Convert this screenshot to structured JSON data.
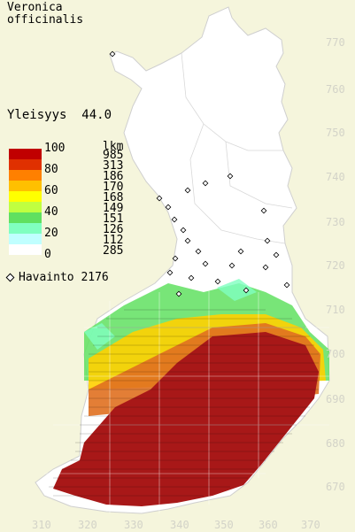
{
  "species": {
    "line1": "Veronica",
    "line2": "officinalis"
  },
  "summary": {
    "yleisyys_label": "Yleisyys",
    "yleisyys_value": "44.0",
    "havainto_label": "Havainto",
    "havainto_value": "2176"
  },
  "legend": {
    "lkm_header": "lkm",
    "percent_labels": [
      "100",
      "80",
      "60",
      "40",
      "20",
      "0"
    ],
    "swatch_colors": [
      "#c00000",
      "#e03000",
      "#ff8000",
      "#ffc000",
      "#ffff00",
      "#c0ff40",
      "#60e060",
      "#80ffc0",
      "#c0ffff",
      "#ffffff"
    ],
    "counts": [
      "985",
      "313",
      "186",
      "170",
      "168",
      "149",
      "151",
      "126",
      "112",
      "285"
    ]
  },
  "axes": {
    "y_ticks": [
      "770",
      "760",
      "750",
      "740",
      "730",
      "720",
      "710",
      "700",
      "690",
      "680",
      "670"
    ],
    "x_ticks": [
      "310",
      "320",
      "330",
      "340",
      "350",
      "360",
      "370"
    ]
  },
  "colors": {
    "background": "#f5f5dc",
    "land": "#ffffff",
    "high": "#a01010",
    "mid": "#d04020"
  }
}
